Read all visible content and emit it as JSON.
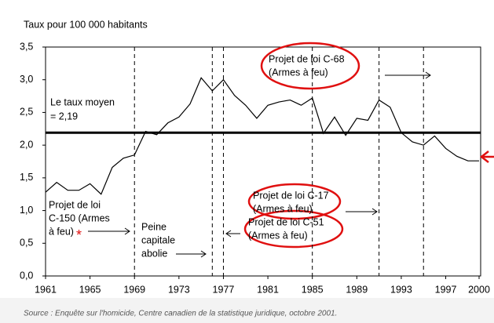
{
  "chart_data": {
    "type": "line",
    "title": "Taux pour 100 000 habitants",
    "x": [
      1961,
      1962,
      1963,
      1964,
      1965,
      1966,
      1967,
      1968,
      1969,
      1970,
      1971,
      1972,
      1973,
      1974,
      1975,
      1976,
      1977,
      1978,
      1979,
      1980,
      1981,
      1982,
      1983,
      1984,
      1985,
      1986,
      1987,
      1988,
      1989,
      1990,
      1991,
      1992,
      1993,
      1994,
      1995,
      1996,
      1997,
      1998,
      1999,
      2000
    ],
    "values": [
      1.28,
      1.43,
      1.31,
      1.31,
      1.41,
      1.25,
      1.66,
      1.8,
      1.85,
      2.21,
      2.16,
      2.34,
      2.43,
      2.63,
      3.03,
      2.83,
      3.0,
      2.76,
      2.61,
      2.41,
      2.61,
      2.66,
      2.69,
      2.61,
      2.72,
      2.18,
      2.43,
      2.15,
      2.41,
      2.38,
      2.69,
      2.58,
      2.19,
      2.05,
      2.0,
      2.14,
      1.95,
      1.83,
      1.76,
      1.76
    ],
    "color": "#000000",
    "xlim": [
      1961,
      2000
    ],
    "xticks": [
      1961,
      1965,
      1969,
      1973,
      1977,
      1981,
      1985,
      1989,
      1993,
      1997,
      2000
    ],
    "ylim": [
      0,
      3.5
    ],
    "yticks": [
      {
        "value": 0,
        "label": "0,0"
      },
      {
        "value": 0.5,
        "label": "0,5"
      },
      {
        "value": 1,
        "label": "1,0"
      },
      {
        "value": 1.5,
        "label": "1,5"
      },
      {
        "value": 2,
        "label": "2,0"
      },
      {
        "value": 2.5,
        "label": "2,5"
      },
      {
        "value": 3,
        "label": "3,0"
      },
      {
        "value": 3.5,
        "label": "3,5"
      }
    ],
    "average": 2.19,
    "average_label": [
      "Le taux moyen",
      "= 2,19"
    ],
    "event_years": [
      1969,
      1976,
      1977,
      1985,
      1991,
      1995
    ],
    "annotations": [
      {
        "lines": [
          "Projet de loi C-68",
          "(Armes à feu)"
        ]
      },
      {
        "lines": [
          "Projet de loi C-17",
          "(Armes à feu)"
        ]
      },
      {
        "lines": [
          "Projet de loi C-51",
          "(Armes à feu)"
        ]
      },
      {
        "lines": [
          "Projet de loi",
          "C-150 (Armes",
          "à feu)"
        ]
      },
      {
        "lines": [
          "Peine",
          "capitale",
          "abolie"
        ]
      }
    ],
    "asterisk": "*",
    "source": "Source :  Enquête sur l'homicide, Centre canadien de la statistique juridique, octobre 2001."
  }
}
